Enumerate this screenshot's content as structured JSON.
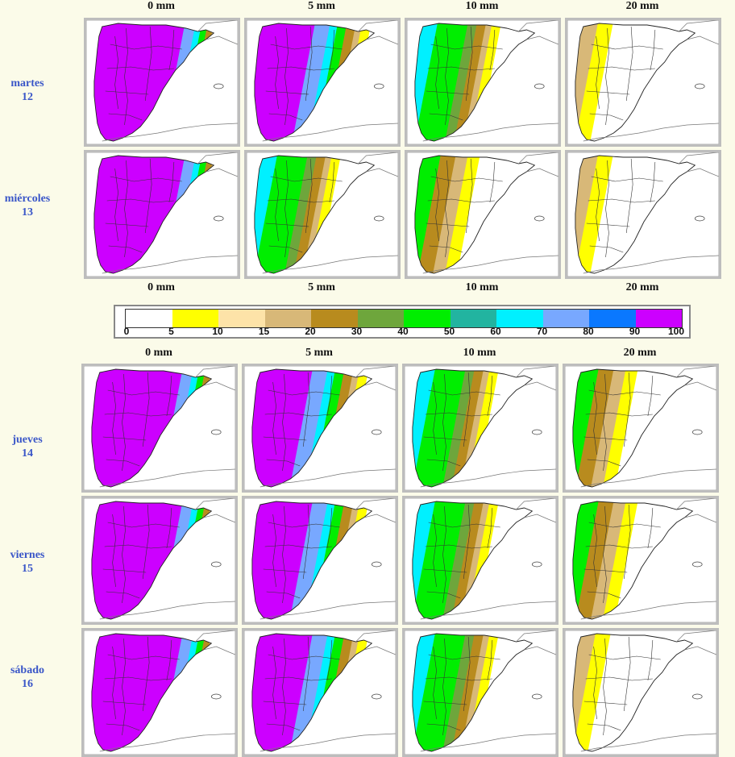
{
  "thresholds_top": [
    "0 mm",
    "5 mm",
    "10 mm",
    "20 mm"
  ],
  "thresholds_mid": [
    "0 mm",
    "5 mm",
    "10 mm",
    "20 mm"
  ],
  "thresholds_bottom": [
    "0 mm",
    "5 mm",
    "10 mm",
    "20 mm"
  ],
  "days_top": [
    {
      "day": "martes",
      "num": "12"
    },
    {
      "day": "miércoles",
      "num": "13"
    }
  ],
  "days_bottom": [
    {
      "day": "jueves",
      "num": "14"
    },
    {
      "day": "viernes",
      "num": "15"
    },
    {
      "day": "sábado",
      "num": "16"
    }
  ],
  "legend": {
    "ticks": [
      "0",
      "5",
      "10",
      "15",
      "20",
      "30",
      "40",
      "50",
      "60",
      "70",
      "80",
      "90",
      "100"
    ],
    "colors": [
      "#ffffff",
      "#ffff00",
      "#fde3a8",
      "#d8b878",
      "#b88b1e",
      "#6ea63c",
      "#00ee00",
      "#22b4a0",
      "#00f0ff",
      "#78a8ff",
      "#0a78ff",
      "#cc00ff"
    ]
  },
  "icons": {
    "map": "spain-precipitation-probability-map"
  }
}
